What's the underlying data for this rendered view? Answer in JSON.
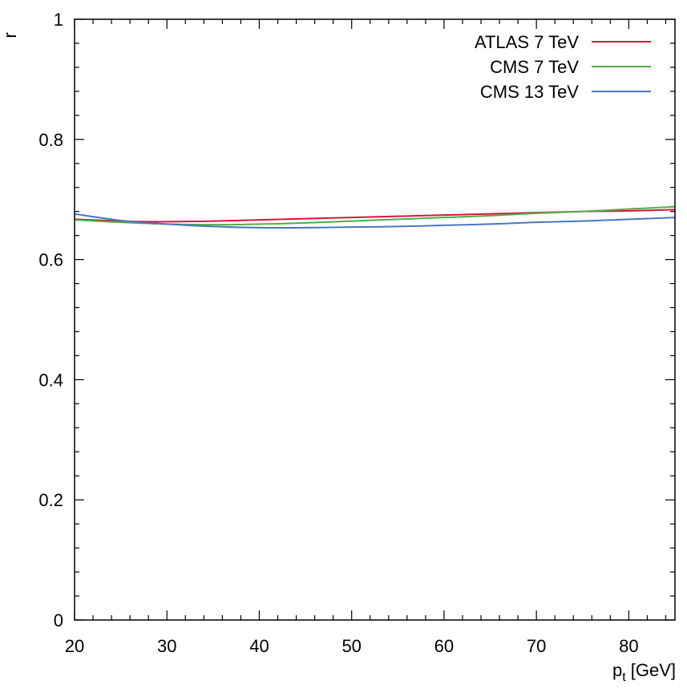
{
  "chart_data": {
    "type": "line",
    "title": "",
    "xlabel": "p",
    "xlabel_sub": "t",
    "xlabel_unit": "[GeV]",
    "ylabel": "r",
    "xlim": [
      20,
      85
    ],
    "ylim": [
      0,
      1
    ],
    "xticks": [
      20,
      30,
      40,
      50,
      60,
      70,
      80
    ],
    "xtick_labels": [
      "20",
      "30",
      "40",
      "50",
      "60",
      "70",
      "80"
    ],
    "yticks": [
      0,
      0.2,
      0.4,
      0.6,
      0.8,
      1
    ],
    "ytick_labels": [
      "0",
      "0.2",
      "0.4",
      "0.6",
      "0.8",
      "1"
    ],
    "x_minor_step": 2,
    "y_minor_step": 0.04,
    "grid": false,
    "legend_position": "top-right",
    "series": [
      {
        "name": "ATLAS 7 TeV",
        "color": "#dc143c",
        "x": [
          20,
          25,
          28,
          30,
          35,
          40,
          45,
          50,
          55,
          60,
          65,
          70,
          75,
          80,
          85
        ],
        "y": [
          0.667,
          0.664,
          0.663,
          0.663,
          0.664,
          0.666,
          0.668,
          0.67,
          0.672,
          0.674,
          0.676,
          0.678,
          0.68,
          0.681,
          0.683
        ]
      },
      {
        "name": "CMS 7 TeV",
        "color": "#4daf4a",
        "x": [
          20,
          25,
          30,
          35,
          40,
          45,
          50,
          55,
          60,
          65,
          70,
          75,
          80,
          85
        ],
        "y": [
          0.666,
          0.662,
          0.659,
          0.658,
          0.659,
          0.661,
          0.664,
          0.667,
          0.67,
          0.673,
          0.677,
          0.68,
          0.684,
          0.688
        ]
      },
      {
        "name": "CMS 13 TeV",
        "color": "#4a76c0",
        "x": [
          20,
          25,
          30,
          35,
          40,
          45,
          50,
          55,
          60,
          65,
          70,
          75,
          80,
          85
        ],
        "y": [
          0.676,
          0.665,
          0.659,
          0.655,
          0.653,
          0.653,
          0.654,
          0.655,
          0.657,
          0.659,
          0.662,
          0.664,
          0.667,
          0.67
        ]
      }
    ]
  }
}
